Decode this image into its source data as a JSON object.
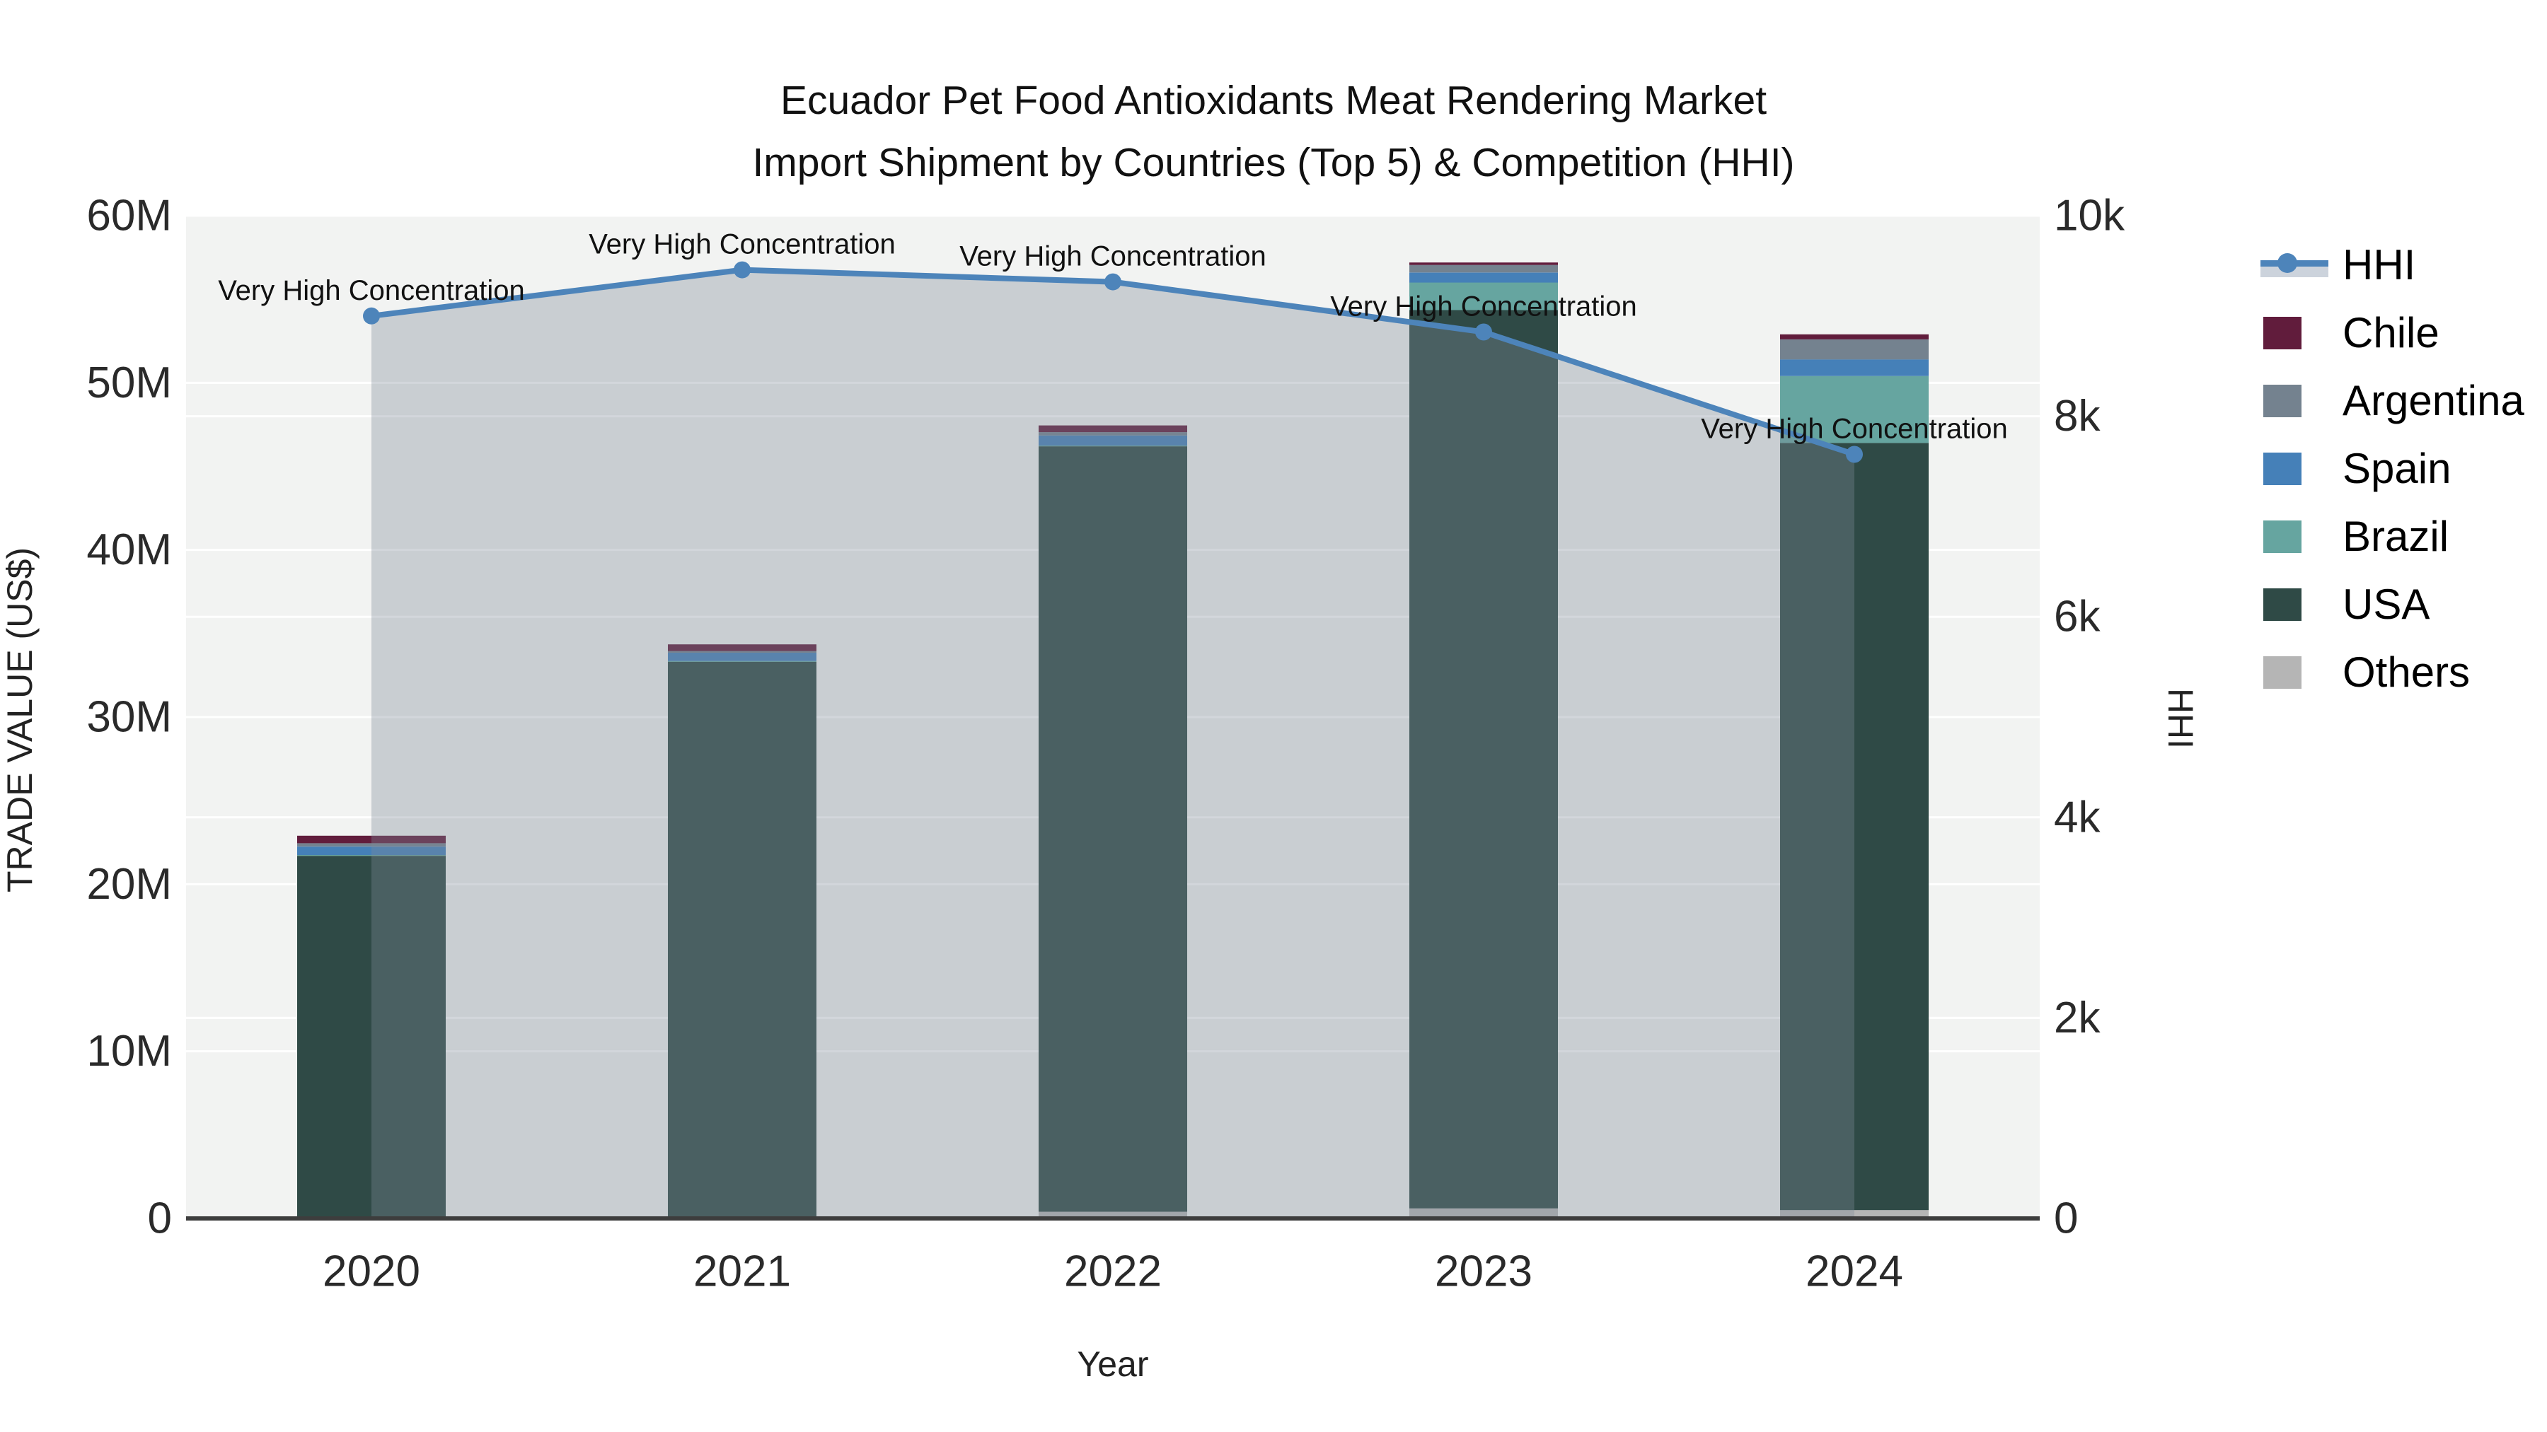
{
  "title": {
    "line1": "Ecuador Pet Food Antioxidants Meat Rendering Market",
    "line2": "Import Shipment by Countries (Top 5) & Competition (HHI)"
  },
  "axis_titles": {
    "left": "TRADE VALUE (US$)",
    "bottom": "Year",
    "right": "HHI"
  },
  "legend": {
    "items": [
      {
        "label": "HHI",
        "color": "#4d84ba",
        "type": "line"
      },
      {
        "label": "Chile",
        "color": "#611c3c",
        "type": "box"
      },
      {
        "label": "Argentina",
        "color": "#74828f",
        "type": "box"
      },
      {
        "label": "Spain",
        "color": "#4580b8",
        "type": "box"
      },
      {
        "label": "Brazil",
        "color": "#66a5a0",
        "type": "box"
      },
      {
        "label": "USA",
        "color": "#2f4a46",
        "type": "box"
      },
      {
        "label": "Others",
        "color": "#b5b5b5",
        "type": "box"
      }
    ]
  },
  "colors": {
    "plot_bg": "#f2f3f2",
    "grid": "#ffffff",
    "axis_line": "#3d3d3d",
    "tick_text": "#2a2a2a",
    "annotation_text": "#111111",
    "area_fill": "rgba(126,138,153,0.35)"
  },
  "chart_data": {
    "type": "bar",
    "stacked": true,
    "title": "Ecuador Pet Food Antioxidants Meat Rendering Market Import Shipment by Countries (Top 5) & Competition (HHI)",
    "xlabel": "Year",
    "categories": [
      "2020",
      "2021",
      "2022",
      "2023",
      "2024"
    ],
    "series": [
      {
        "name": "Others",
        "color": "#b5b5b5",
        "values": [
          100000,
          100000,
          400000,
          600000,
          500000
        ]
      },
      {
        "name": "USA",
        "color": "#2f4a46",
        "values": [
          21600000,
          33200000,
          45800000,
          53750000,
          45900000
        ]
      },
      {
        "name": "Brazil",
        "color": "#66a5a0",
        "values": [
          50000,
          50000,
          50000,
          1650000,
          4000000
        ]
      },
      {
        "name": "Spain",
        "color": "#4580b8",
        "values": [
          500000,
          500000,
          600000,
          600000,
          1000000
        ]
      },
      {
        "name": "Argentina",
        "color": "#74828f",
        "values": [
          200000,
          100000,
          200000,
          450000,
          1200000
        ]
      },
      {
        "name": "Chile",
        "color": "#611c3c",
        "values": [
          450000,
          400000,
          400000,
          150000,
          300000
        ]
      }
    ],
    "bar_totals": [
      22900000,
      34350000,
      47450000,
      57200000,
      52900000
    ],
    "line_series": {
      "name": "HHI",
      "axis": "right",
      "color": "#4d84ba",
      "area_fill": "rgba(126,138,153,0.35)",
      "values": [
        9000,
        9460,
        9340,
        8840,
        7620
      ],
      "point_annotation": "Very High Concentration"
    },
    "y_left": {
      "label": "TRADE VALUE (US$)",
      "ticks": [
        "0",
        "10M",
        "20M",
        "30M",
        "40M",
        "50M",
        "60M"
      ],
      "max": 60000000,
      "step": 10000000
    },
    "y_right": {
      "label": "HHI",
      "ticks": [
        "0",
        "2k",
        "4k",
        "6k",
        "8k",
        "10k"
      ],
      "max": 10000,
      "step": 2000
    },
    "grid": true,
    "legend_position": "right"
  }
}
